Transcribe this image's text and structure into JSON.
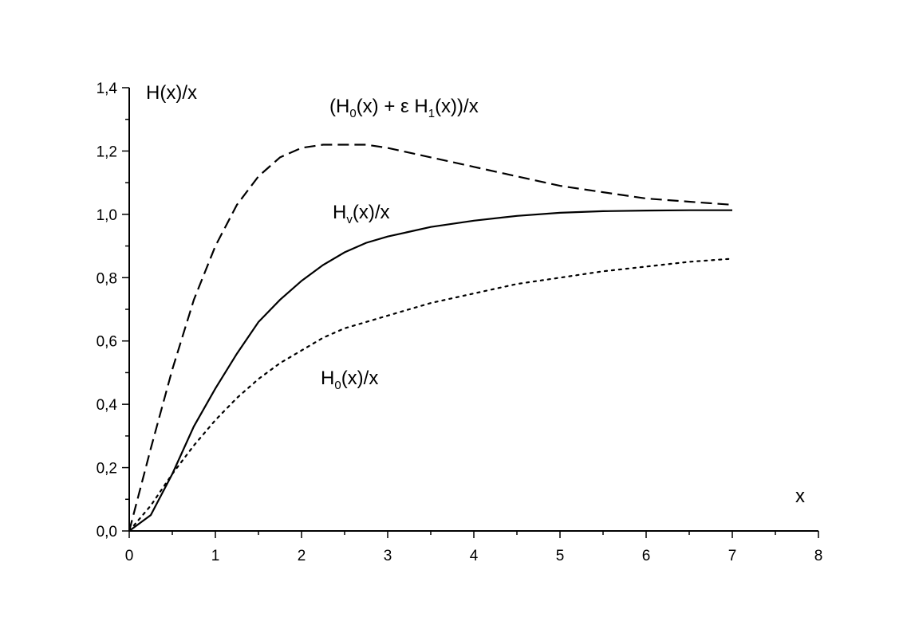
{
  "chart_data": {
    "type": "line",
    "title": "",
    "xlabel": "x",
    "ylabel": "H(x)/x",
    "xlim": [
      0,
      8
    ],
    "ylim": [
      0,
      1.4
    ],
    "x_ticks": [
      0,
      1,
      2,
      3,
      4,
      5,
      6,
      7,
      8
    ],
    "x_tick_labels": [
      "0",
      "1",
      "2",
      "3",
      "4",
      "5",
      "6",
      "7",
      "8"
    ],
    "y_ticks": [
      0.0,
      0.2,
      0.4,
      0.6,
      0.8,
      1.0,
      1.2,
      1.4
    ],
    "y_tick_labels": [
      "0,0",
      "0,2",
      "0,4",
      "0,6",
      "0,8",
      "1,0",
      "1,2",
      "1,4"
    ],
    "grid": false,
    "legend": "none",
    "series": [
      {
        "label_main": "(H",
        "label_sub1": "0",
        "label_mid": "(x) + ε H",
        "label_sub2": "1",
        "label_end": "(x))/x",
        "style": "dashed",
        "color": "#000000",
        "x": [
          0,
          0.25,
          0.5,
          0.75,
          1.0,
          1.25,
          1.5,
          1.75,
          2.0,
          2.25,
          2.5,
          2.75,
          3.0,
          3.5,
          4.0,
          4.5,
          5.0,
          5.5,
          6.0,
          6.5,
          7.0
        ],
        "y": [
          0,
          0.26,
          0.51,
          0.73,
          0.9,
          1.03,
          1.12,
          1.18,
          1.21,
          1.22,
          1.22,
          1.22,
          1.21,
          1.18,
          1.15,
          1.12,
          1.09,
          1.07,
          1.05,
          1.04,
          1.03
        ]
      },
      {
        "label_main": "H",
        "label_sub1": "v",
        "label_mid": "(x)/x",
        "label_sub2": "",
        "label_end": "",
        "style": "solid",
        "color": "#000000",
        "x": [
          0,
          0.25,
          0.5,
          0.75,
          1.0,
          1.25,
          1.5,
          1.75,
          2.0,
          2.25,
          2.5,
          2.75,
          3.0,
          3.5,
          4.0,
          4.5,
          5.0,
          5.5,
          6.0,
          6.5,
          7.0
        ],
        "y": [
          0,
          0.05,
          0.18,
          0.33,
          0.45,
          0.56,
          0.66,
          0.73,
          0.79,
          0.84,
          0.88,
          0.91,
          0.93,
          0.96,
          0.98,
          0.995,
          1.005,
          1.01,
          1.012,
          1.013,
          1.013
        ]
      },
      {
        "label_main": "H",
        "label_sub1": "0",
        "label_mid": "(x)/x",
        "label_sub2": "",
        "label_end": "",
        "style": "dotted",
        "color": "#000000",
        "x": [
          0,
          0.25,
          0.5,
          0.75,
          1.0,
          1.25,
          1.5,
          1.75,
          2.0,
          2.25,
          2.5,
          2.75,
          3.0,
          3.5,
          4.0,
          4.5,
          5.0,
          5.5,
          6.0,
          6.5,
          7.0
        ],
        "y": [
          0,
          0.08,
          0.18,
          0.27,
          0.35,
          0.42,
          0.48,
          0.53,
          0.57,
          0.61,
          0.64,
          0.66,
          0.68,
          0.72,
          0.75,
          0.78,
          0.8,
          0.82,
          0.835,
          0.85,
          0.86
        ]
      }
    ]
  }
}
